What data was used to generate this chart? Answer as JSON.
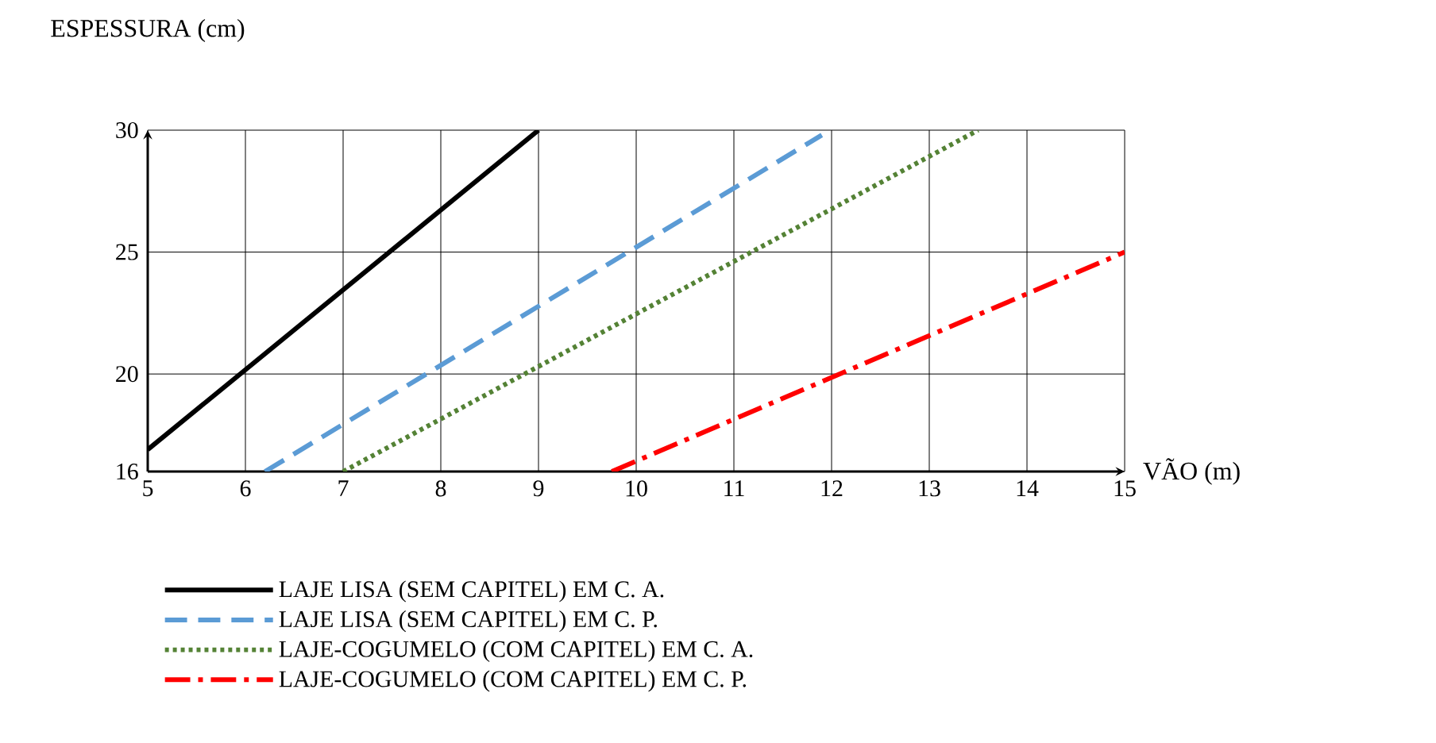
{
  "chart_data": {
    "type": "line",
    "xlabel": "VÃO (m)",
    "ylabel": "ESPESSURA (cm)",
    "xlim": [
      5,
      15
    ],
    "ylim": [
      16,
      30
    ],
    "xticks": [
      5,
      6,
      7,
      8,
      9,
      10,
      11,
      12,
      13,
      14,
      15
    ],
    "yticks": [
      16,
      20,
      25,
      30
    ],
    "grid": true,
    "legend": "bottom",
    "series": [
      {
        "name": "LAJE LISA (SEM CAPITEL) EM C. A.",
        "color": "#000000",
        "line_style": "solid",
        "x": [
          5,
          9
        ],
        "values": [
          16.9,
          30
        ]
      },
      {
        "name": "LAJE LISA (SEM CAPITEL) EM C. P.",
        "color": "#5b9bd5",
        "line_style": "dashed",
        "x": [
          6.2,
          11.9
        ],
        "values": [
          16,
          29.8
        ]
      },
      {
        "name": "LAJE-COGUMELO (COM CAPITEL) EM C. A.",
        "color": "#548235",
        "line_style": "dotted",
        "x": [
          7,
          13.5
        ],
        "values": [
          16,
          30
        ]
      },
      {
        "name": "LAJE-COGUMELO (COM CAPITEL) EM C. P.",
        "color": "#ff0000",
        "line_style": "dashdot",
        "x": [
          9.75,
          15
        ],
        "values": [
          16,
          25
        ]
      }
    ]
  }
}
